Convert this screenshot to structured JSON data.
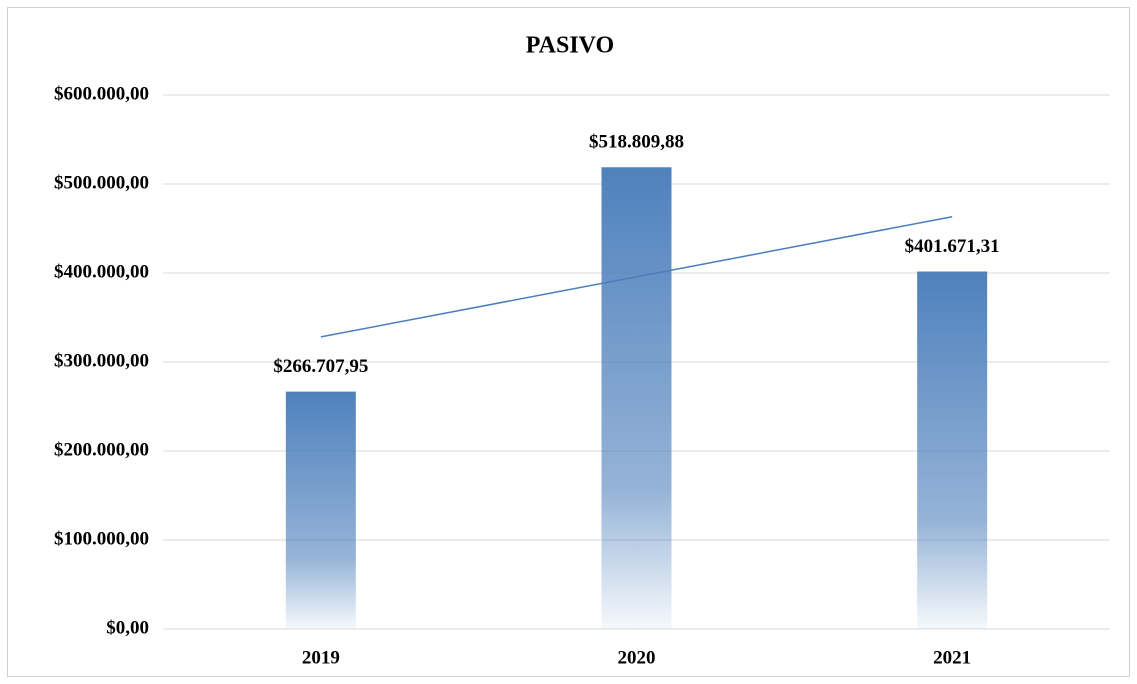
{
  "chart_data": {
    "type": "bar",
    "title": "PASIVO",
    "categories": [
      "2019",
      "2020",
      "2021"
    ],
    "values": [
      266707.95,
      518809.88,
      401671.31
    ],
    "value_labels": [
      "$266.707,95",
      "$518.809,88",
      "$401.671,31"
    ],
    "color": "#4f81bd",
    "ylim": [
      0,
      600000
    ],
    "yticks": [
      {
        "value": 0,
        "label": "$0,00"
      },
      {
        "value": 100000,
        "label": "$100.000,00"
      },
      {
        "value": 200000,
        "label": "$200.000,00"
      },
      {
        "value": 300000,
        "label": "$300.000,00"
      },
      {
        "value": 400000,
        "label": "$400.000,00"
      },
      {
        "value": 500000,
        "label": "$500.000,00"
      },
      {
        "value": 600000,
        "label": "$600.000,00"
      }
    ],
    "grid": true,
    "trendline": "linear",
    "trendline_color": "#4a7ebb"
  }
}
